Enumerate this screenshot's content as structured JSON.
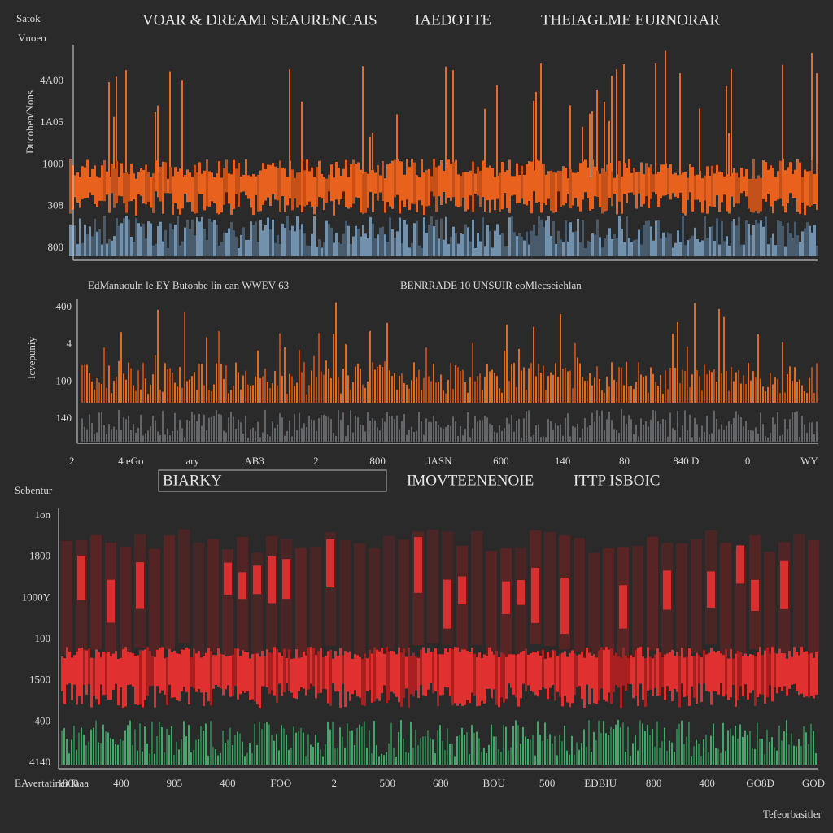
{
  "header": {
    "corner_top": "Satok",
    "corner_bottom": "Vnoeo",
    "titles": [
      "VOAR & DREAMI SEAURENCAIS",
      "IAEDOTTE",
      "THEIAGLME EURNORAR"
    ]
  },
  "panel_1": {
    "y_title": "Ducohen/Nons",
    "y_labels": [
      "4A00",
      "1A05",
      "1000",
      "308",
      "800"
    ],
    "captions": [
      "EdManuouln le EY Butonbe lin can WWEV 63",
      "BENRRADE 10 UNSUIR eoMlecseiehlan"
    ]
  },
  "panel_2": {
    "y_title": "Icvepuniy",
    "y_labels": [
      "400",
      "4",
      "100",
      "140"
    ],
    "x_labels": [
      "2",
      "4 eGo",
      "ary",
      "AB3",
      "2",
      "800",
      "JASN",
      "600",
      "140",
      "80",
      "840 D",
      "0",
      "WY"
    ],
    "legend": [
      "BIARKY",
      "IMOVTEENENOIE",
      "ITTP ISBOIC"
    ]
  },
  "panel_3": {
    "y_title": "Sebentur",
    "y_labels": [
      "1on",
      "1800",
      "1000Y",
      "100",
      "1500",
      "400",
      "4140"
    ],
    "x_labels": [
      "EAvertatiner Iaaa",
      "1800",
      "400",
      "905",
      "400",
      "FOO",
      "2",
      "500",
      "680",
      "BOU",
      "500",
      "EDBIU",
      "800",
      "400",
      "GO8D",
      "GOD"
    ],
    "footer": "Tefeorbasitler"
  }
}
